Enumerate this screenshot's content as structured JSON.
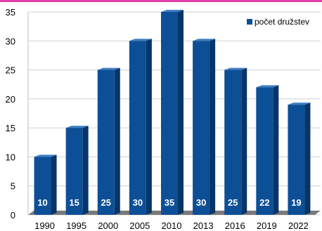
{
  "colors": {
    "top_bar": "#e23fa7",
    "bar_front": "#0d4f96",
    "bar_top": "#3f7fc4",
    "bar_side": "#073567",
    "floor": "#7a7a7a",
    "grid": "#d0d0d0",
    "wall": "#bfbfbf"
  },
  "chart_data": {
    "type": "bar",
    "categories": [
      "1990",
      "1995",
      "2000",
      "2005",
      "2010",
      "2013",
      "2016",
      "2019",
      "2022"
    ],
    "series": [
      {
        "name": "počet družstev",
        "values": [
          10,
          15,
          25,
          30,
          35,
          30,
          25,
          22,
          19
        ]
      }
    ],
    "data_labels": [
      "10",
      "15",
      "25",
      "30",
      "35",
      "30",
      "25",
      "22",
      "19"
    ],
    "yticks": [
      "0",
      "5",
      "10",
      "15",
      "20",
      "25",
      "30",
      "35"
    ],
    "ylim": [
      0,
      35
    ],
    "grid": true,
    "legend_position": "top-right",
    "style": "3d-bar"
  }
}
